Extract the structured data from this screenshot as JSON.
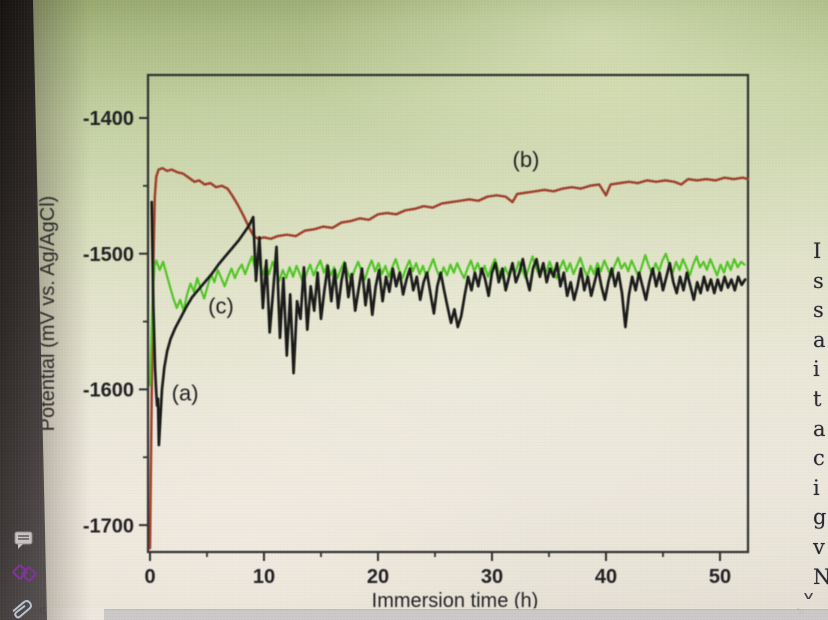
{
  "side_text": {
    "letters": [
      "I",
      "s",
      "s",
      "a",
      "i",
      "t",
      "a",
      "c",
      "i",
      "g",
      "v",
      "N"
    ],
    "scroll_down_glyph": "˅",
    "scroll_right_glyph": ">"
  },
  "nav": {
    "back_glyph": "<"
  },
  "bezel_icons": [
    {
      "name": "comment-icon"
    },
    {
      "name": "link-icon"
    },
    {
      "name": "paperclip-icon"
    }
  ],
  "chart_data": {
    "type": "line",
    "title": "",
    "xlabel": "Immersion time (h)",
    "ylabel": "Potential (mV vs. Ag/AgCl)",
    "xlim": [
      -0.3,
      52.5
    ],
    "ylim": [
      -1720,
      -1368
    ],
    "x_ticks": [
      0,
      10,
      20,
      30,
      40,
      50
    ],
    "x_minor_ticks": [
      5,
      15,
      25,
      35,
      45
    ],
    "y_ticks": [
      -1400,
      -1500,
      -1600,
      -1700
    ],
    "y_minor_ticks": [
      -1450,
      -1550,
      -1650
    ],
    "grid": false,
    "legend_position": "inline-curve-labels",
    "frame_color": "#2b2b2b",
    "series": [
      {
        "id": "b",
        "label": "(b)",
        "label_xy": [
          31.8,
          -1436
        ],
        "color": "#9e3a28",
        "width": 2.5,
        "segments": [
          {
            "points": [
              [
                0,
                -1717
              ],
              [
                0.08,
                -1655
              ],
              [
                0.18,
                -1580
              ],
              [
                0.3,
                -1505
              ],
              [
                0.42,
                -1458
              ],
              [
                0.55,
                -1443
              ],
              [
                0.75,
                -1438
              ],
              [
                1.1,
                -1437
              ],
              [
                1.5,
                -1439
              ],
              [
                1.9,
                -1438
              ],
              [
                2.4,
                -1440
              ],
              [
                2.9,
                -1441
              ],
              [
                3.4,
                -1444
              ],
              [
                3.9,
                -1447
              ],
              [
                4.3,
                -1446
              ],
              [
                4.8,
                -1449
              ],
              [
                5.3,
                -1448
              ],
              [
                5.8,
                -1451
              ],
              [
                6.3,
                -1450
              ],
              [
                6.8,
                -1452
              ],
              [
                7.2,
                -1457
              ],
              [
                7.7,
                -1464
              ],
              [
                8.2,
                -1472
              ],
              [
                8.7,
                -1481
              ],
              [
                9.1,
                -1487
              ],
              [
                9.5,
                -1489
              ],
              [
                10,
                -1488
              ],
              [
                10.6,
                -1489
              ],
              [
                11.2,
                -1487
              ],
              [
                12,
                -1486
              ],
              [
                12.8,
                -1487
              ],
              [
                13.6,
                -1483
              ],
              [
                14.4,
                -1482
              ],
              [
                15.2,
                -1480
              ],
              [
                16,
                -1481
              ],
              [
                16.8,
                -1477
              ],
              [
                17.6,
                -1476
              ],
              [
                18.4,
                -1474
              ],
              [
                19.2,
                -1475
              ],
              [
                20,
                -1471
              ],
              [
                20.8,
                -1470
              ],
              [
                21.6,
                -1471
              ],
              [
                22.4,
                -1468
              ],
              [
                23.2,
                -1467
              ],
              [
                24,
                -1465
              ],
              [
                24.8,
                -1466
              ],
              [
                25.6,
                -1463
              ],
              [
                26.4,
                -1462
              ],
              [
                27.2,
                -1461
              ],
              [
                28,
                -1460
              ],
              [
                28.8,
                -1461
              ],
              [
                29.6,
                -1458
              ],
              [
                30.4,
                -1457
              ],
              [
                31.2,
                -1458
              ],
              [
                31.8,
                -1462
              ],
              [
                32.2,
                -1456
              ],
              [
                33,
                -1455
              ],
              [
                33.8,
                -1454
              ],
              [
                34.6,
                -1453
              ],
              [
                35.4,
                -1454
              ],
              [
                36.2,
                -1452
              ],
              [
                37,
                -1451
              ],
              [
                37.8,
                -1452
              ],
              [
                38.6,
                -1450
              ],
              [
                39.4,
                -1449
              ],
              [
                40,
                -1457
              ],
              [
                40.4,
                -1449
              ],
              [
                41.2,
                -1448
              ],
              [
                42,
                -1447
              ],
              [
                42.8,
                -1448
              ],
              [
                43.6,
                -1446
              ],
              [
                44.4,
                -1447
              ],
              [
                45.2,
                -1446
              ],
              [
                46,
                -1447
              ],
              [
                46.6,
                -1449
              ],
              [
                47.2,
                -1445
              ],
              [
                48,
                -1446
              ],
              [
                48.8,
                -1445
              ],
              [
                49.6,
                -1446
              ],
              [
                50.4,
                -1444
              ],
              [
                51.2,
                -1445
              ],
              [
                52,
                -1444
              ],
              [
                52.45,
                -1445
              ]
            ]
          }
        ]
      },
      {
        "id": "c",
        "label": "(c)",
        "label_xy": [
          5.1,
          -1544
        ],
        "color": "#4cc41f",
        "width": 2.2,
        "segments": [
          {
            "points": [
              [
                0,
                -1597
              ],
              [
                0.12,
                -1563
              ],
              [
                0.25,
                -1528
              ],
              [
                0.4,
                -1509
              ]
            ]
          },
          {
            "t0": 0.55,
            "dt": 0.3,
            "v": [
              -1505,
              -1512,
              -1506,
              -1515,
              -1524,
              -1533,
              -1540,
              -1534,
              -1542,
              -1530,
              -1522,
              -1528,
              -1518,
              -1526,
              -1533,
              -1524,
              -1515,
              -1521,
              -1512,
              -1518,
              -1524,
              -1517,
              -1511,
              -1518,
              -1512,
              -1508,
              -1515,
              -1508,
              -1502,
              -1512,
              -1505,
              -1516,
              -1508,
              -1515,
              -1506,
              -1513,
              -1520,
              -1512,
              -1518,
              -1510,
              -1517,
              -1509,
              -1515,
              -1522,
              -1514,
              -1508,
              -1516,
              -1510,
              -1505,
              -1514,
              -1508,
              -1516,
              -1510,
              -1518,
              -1511,
              -1506,
              -1514,
              -1520,
              -1512,
              -1506,
              -1513,
              -1519,
              -1511,
              -1505,
              -1513,
              -1507,
              -1515,
              -1509,
              -1517,
              -1510,
              -1504,
              -1512,
              -1518,
              -1511,
              -1505,
              -1513,
              -1507,
              -1515,
              -1509,
              -1517,
              -1510,
              -1504,
              -1512,
              -1518,
              -1510,
              -1516,
              -1508,
              -1514,
              -1507,
              -1513,
              -1518,
              -1511,
              -1505,
              -1513,
              -1507,
              -1515,
              -1509,
              -1517,
              -1510,
              -1504,
              -1512,
              -1518,
              -1510,
              -1516,
              -1508,
              -1514,
              -1506,
              -1512,
              -1518,
              -1510,
              -1502,
              -1510,
              -1516,
              -1508,
              -1514,
              -1506,
              -1512,
              -1518,
              -1511,
              -1505,
              -1513,
              -1507,
              -1515,
              -1509,
              -1503,
              -1511,
              -1517,
              -1509,
              -1515,
              -1507,
              -1513,
              -1505,
              -1511,
              -1517,
              -1509,
              -1503,
              -1511,
              -1507,
              -1513,
              -1505,
              -1511,
              -1517,
              -1509,
              -1501,
              -1509,
              -1515,
              -1507,
              -1513,
              -1505,
              -1500,
              -1508,
              -1514,
              -1506,
              -1512,
              -1504,
              -1510,
              -1516,
              -1508,
              -1502,
              -1510,
              -1506,
              -1512,
              -1504,
              -1510,
              -1516,
              -1508,
              -1514,
              -1506,
              -1512,
              -1504,
              -1510,
              -1506,
              -1508
            ]
          }
        ]
      },
      {
        "id": "a",
        "label": "(a)",
        "label_xy": [
          1.9,
          -1608
        ],
        "color": "#151515",
        "width": 2.7,
        "segments": [
          {
            "points": [
              [
                0.15,
                -1462
              ],
              [
                0.3,
                -1540
              ],
              [
                0.45,
                -1585
              ],
              [
                0.55,
                -1603
              ],
              [
                0.62,
                -1612
              ],
              [
                0.7,
                -1607
              ],
              [
                0.78,
                -1641
              ],
              [
                0.9,
                -1622
              ],
              [
                1.05,
                -1600
              ],
              [
                1.25,
                -1584
              ],
              [
                1.5,
                -1572
              ],
              [
                1.8,
                -1563
              ],
              [
                2.2,
                -1555
              ],
              [
                2.7,
                -1547
              ],
              [
                3.2,
                -1539
              ],
              [
                3.7,
                -1532
              ],
              [
                4.2,
                -1527
              ],
              [
                4.8,
                -1521
              ],
              [
                5.4,
                -1515
              ],
              [
                6.0,
                -1508
              ],
              [
                6.6,
                -1502
              ],
              [
                7.2,
                -1496
              ],
              [
                7.8,
                -1490
              ],
              [
                8.3,
                -1484
              ],
              [
                8.7,
                -1479
              ],
              [
                9.05,
                -1473
              ]
            ]
          },
          {
            "t0": 9.3,
            "dt": 0.3,
            "v": [
              -1520,
              -1488,
              -1540,
              -1505,
              -1558,
              -1528,
              -1495,
              -1562,
              -1518,
              -1575,
              -1530,
              -1588,
              -1535,
              -1548,
              -1510,
              -1556,
              -1524,
              -1542,
              -1514,
              -1548,
              -1527,
              -1509,
              -1535,
              -1512,
              -1540,
              -1520,
              -1507,
              -1532,
              -1515,
              -1542,
              -1526,
              -1511,
              -1538,
              -1519,
              -1545,
              -1524,
              -1512,
              -1535,
              -1517,
              -1528,
              -1511,
              -1524,
              -1514,
              -1530,
              -1519,
              -1511,
              -1527,
              -1517,
              -1534,
              -1521,
              -1514,
              -1529,
              -1544,
              -1524,
              -1514,
              -1527,
              -1539,
              -1551,
              -1541,
              -1554,
              -1546,
              -1531,
              -1517,
              -1527,
              -1514,
              -1524,
              -1511,
              -1519,
              -1531,
              -1514,
              -1507,
              -1521,
              -1511,
              -1527,
              -1517,
              -1507,
              -1521,
              -1514,
              -1504,
              -1517,
              -1527,
              -1511,
              -1504,
              -1517,
              -1507,
              -1521,
              -1511,
              -1517,
              -1507,
              -1524,
              -1514,
              -1531,
              -1521,
              -1534,
              -1524,
              -1511,
              -1527,
              -1517,
              -1531,
              -1521,
              -1511,
              -1524,
              -1534,
              -1521,
              -1511,
              -1524,
              -1514,
              -1529,
              -1554,
              -1531,
              -1517,
              -1527,
              -1514,
              -1524,
              -1534,
              -1521,
              -1511,
              -1524,
              -1514,
              -1527,
              -1517,
              -1507,
              -1521,
              -1529,
              -1517,
              -1527,
              -1514,
              -1524,
              -1534,
              -1521,
              -1529,
              -1517,
              -1527,
              -1519,
              -1529,
              -1519,
              -1527,
              -1517,
              -1525,
              -1519,
              -1527,
              -1517,
              -1523,
              -1519
            ]
          }
        ]
      }
    ]
  }
}
